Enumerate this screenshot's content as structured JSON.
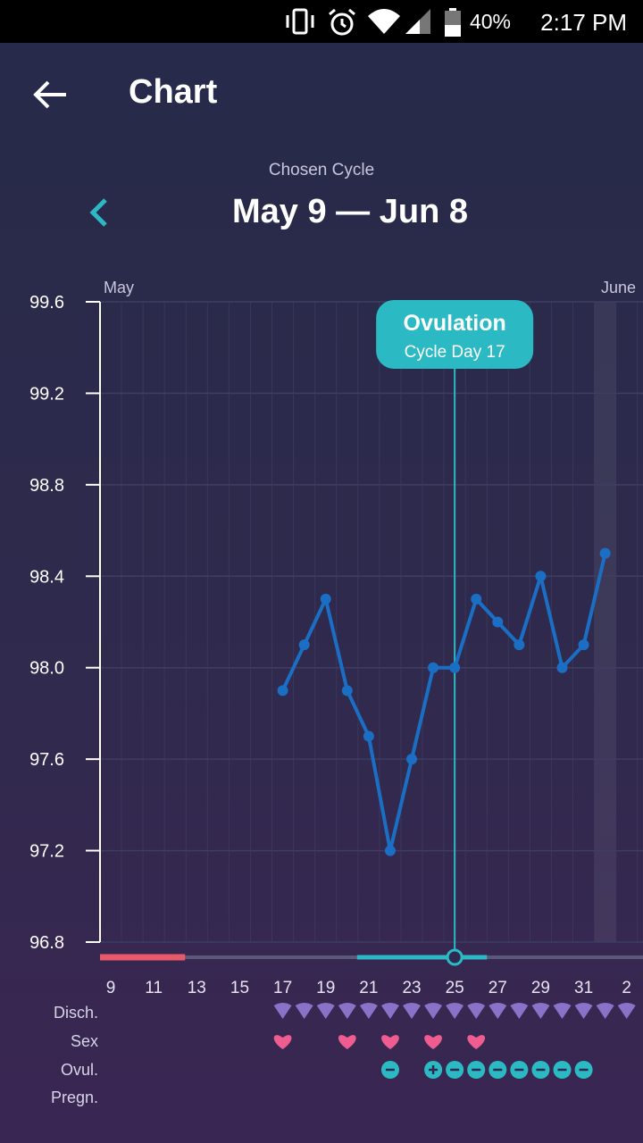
{
  "status_bar": {
    "battery": "40%",
    "time": "2:17 PM",
    "icons": [
      "vibrate-icon",
      "alarm-icon",
      "wifi-icon",
      "signal-icon",
      "battery-icon"
    ]
  },
  "header": {
    "title": "Chart",
    "back_icon": "back-arrow-icon"
  },
  "cycle": {
    "label": "Chosen Cycle",
    "range": "May 9 — Jun 8",
    "prev_icon": "chevron-left-icon"
  },
  "chart_data": {
    "type": "line",
    "ylim": [
      96.8,
      99.6
    ],
    "yticks": [
      "99.6",
      "99.2",
      "98.8",
      "98.4",
      "98.0",
      "97.6",
      "97.2",
      "96.8"
    ],
    "x_days": [
      "9",
      "11",
      "13",
      "15",
      "17",
      "19",
      "21",
      "23",
      "25",
      "27",
      "29",
      "31",
      "2"
    ],
    "x": [
      17,
      18,
      19,
      20,
      21,
      22,
      23,
      24,
      25,
      26,
      27,
      28,
      29,
      30,
      31,
      32
    ],
    "values": [
      97.9,
      98.1,
      98.3,
      97.9,
      97.7,
      97.2,
      97.6,
      98.0,
      98.0,
      98.3,
      98.2,
      98.1,
      98.4,
      98.0,
      98.1,
      98.5
    ],
    "month_labels": [
      {
        "text": "May",
        "day": 9
      },
      {
        "text": "June",
        "day": 32
      }
    ],
    "ovulation": {
      "title": "Ovulation",
      "subtitle": "Cycle Day 17",
      "day": 25
    },
    "period_days": [
      9,
      12
    ],
    "fertile_days": [
      20,
      26
    ],
    "colors": {
      "line": "#1a6fc4",
      "ovulation": "#2bbac4",
      "period": "#e85a6a",
      "grid": "#3f3d62"
    }
  },
  "calendar": {
    "labels": {
      "discharge": "Disch.",
      "sex": "Sex",
      "ovulation_test": "Ovul.",
      "pregnancy": "Pregn."
    },
    "discharge_days": [
      17,
      18,
      19,
      20,
      21,
      22,
      23,
      24,
      25,
      26,
      27,
      28,
      29,
      30,
      31,
      32,
      33
    ],
    "sex_days": [
      17,
      20,
      22,
      24,
      26
    ],
    "ovulation_tests": [
      {
        "day": 22,
        "result": "negative"
      },
      {
        "day": 24,
        "result": "positive"
      },
      {
        "day": 25,
        "result": "negative"
      },
      {
        "day": 26,
        "result": "negative"
      },
      {
        "day": 27,
        "result": "negative"
      },
      {
        "day": 28,
        "result": "negative"
      },
      {
        "day": 29,
        "result": "negative"
      },
      {
        "day": 30,
        "result": "negative"
      },
      {
        "day": 31,
        "result": "negative"
      }
    ],
    "icons": {
      "discharge": "discharge-drop-icon",
      "sex": "heart-icon",
      "ovulation_negative": "minus-circle-icon",
      "ovulation_positive": "plus-circle-icon"
    }
  }
}
